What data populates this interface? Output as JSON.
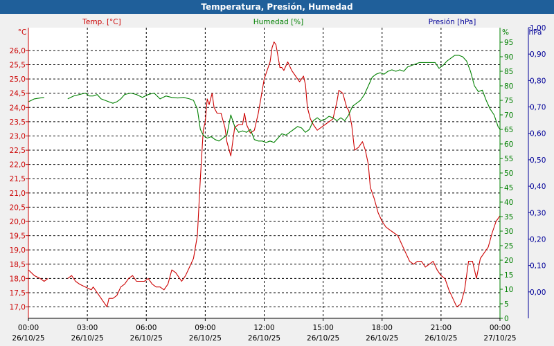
{
  "window": {
    "title": "Temperatura, Presión, Humedad"
  },
  "colors": {
    "temp": "#cc0000",
    "hum": "#008000",
    "press": "#000099",
    "grid": "#000000",
    "plot_bg": "#ffffff",
    "title_bg": "#1f5f9a"
  },
  "chart_data": {
    "type": "line",
    "title": "Temperatura, Presión, Humedad",
    "grid": true,
    "legend_labels": {
      "temp": "Temp. [°C]",
      "hum": "Humedad [%]",
      "press": "Presión [hPa]"
    },
    "axes": {
      "temp": {
        "unit": "°C",
        "min": 16.6,
        "max": 26.8,
        "ticks": [
          "17,0",
          "17,5",
          "18,0",
          "18,5",
          "19,0",
          "19,5",
          "20,0",
          "20,5",
          "21,0",
          "21,5",
          "22,0",
          "22,5",
          "23,0",
          "23,5",
          "24,0",
          "24,5",
          "25,0",
          "25,5",
          "26,0"
        ]
      },
      "hum": {
        "unit": "%",
        "min": 0,
        "max": 100,
        "ticks": [
          "0",
          "5",
          "10",
          "15",
          "20",
          "25",
          "30",
          "35",
          "40",
          "45",
          "50",
          "55",
          "60",
          "65",
          "70",
          "75",
          "80",
          "85",
          "90",
          "95"
        ]
      },
      "press": {
        "unit": "hPa",
        "min": -0.1,
        "max": 1.0,
        "ticks": [
          "0,00",
          "0,10",
          "0,20",
          "0,30",
          "0,40",
          "0,50",
          "0,60",
          "0,70",
          "0,80",
          "0,90",
          "1,00"
        ]
      }
    },
    "x_axis": {
      "min_hours": 0,
      "max_hours": 24,
      "ticks": [
        {
          "time": "00:00",
          "date": "26/10/25"
        },
        {
          "time": "03:00",
          "date": "26/10/25"
        },
        {
          "time": "06:00",
          "date": "26/10/25"
        },
        {
          "time": "09:00",
          "date": "26/10/25"
        },
        {
          "time": "12:00",
          "date": "26/10/25"
        },
        {
          "time": "15:00",
          "date": "26/10/25"
        },
        {
          "time": "18:00",
          "date": "26/10/25"
        },
        {
          "time": "21:00",
          "date": "26/10/25"
        },
        {
          "time": "00:00",
          "date": "27/10/25"
        }
      ]
    },
    "series": [
      {
        "name": "Temp. [°C]",
        "axis": "temp",
        "segments": [
          [
            [
              0,
              18.3
            ],
            [
              0.3,
              18.1
            ],
            [
              0.6,
              18.0
            ],
            [
              0.8,
              17.9
            ],
            [
              1.0,
              18.0
            ]
          ],
          [
            [
              2.0,
              18.0
            ],
            [
              2.2,
              18.1
            ],
            [
              2.4,
              17.9
            ],
            [
              2.6,
              17.8
            ],
            [
              2.9,
              17.7
            ],
            [
              3.2,
              17.6
            ],
            [
              3.3,
              17.7
            ],
            [
              3.5,
              17.5
            ],
            [
              3.7,
              17.3
            ],
            [
              3.9,
              17.1
            ],
            [
              4.0,
              17.0
            ],
            [
              4.1,
              17.3
            ],
            [
              4.3,
              17.3
            ],
            [
              4.5,
              17.4
            ],
            [
              4.7,
              17.7
            ],
            [
              4.9,
              17.8
            ],
            [
              5.1,
              18.0
            ],
            [
              5.3,
              18.1
            ],
            [
              5.5,
              17.9
            ],
            [
              5.7,
              17.9
            ],
            [
              5.9,
              17.9
            ],
            [
              6.1,
              18.0
            ],
            [
              6.3,
              17.8
            ],
            [
              6.5,
              17.7
            ],
            [
              6.7,
              17.7
            ],
            [
              6.9,
              17.6
            ],
            [
              7.1,
              17.8
            ],
            [
              7.3,
              18.3
            ],
            [
              7.5,
              18.2
            ],
            [
              7.8,
              17.9
            ],
            [
              8.0,
              18.1
            ],
            [
              8.2,
              18.4
            ],
            [
              8.4,
              18.7
            ],
            [
              8.6,
              19.5
            ],
            [
              8.75,
              21.5
            ],
            [
              8.9,
              23.2
            ],
            [
              9.0,
              23.5
            ],
            [
              9.1,
              24.3
            ],
            [
              9.2,
              24.1
            ],
            [
              9.35,
              24.5
            ],
            [
              9.45,
              24.0
            ],
            [
              9.6,
              23.8
            ],
            [
              9.8,
              23.8
            ],
            [
              10.0,
              23.3
            ],
            [
              10.1,
              22.8
            ],
            [
              10.3,
              22.3
            ],
            [
              10.5,
              23.3
            ],
            [
              10.7,
              23.4
            ],
            [
              10.9,
              23.4
            ],
            [
              11.0,
              23.8
            ],
            [
              11.1,
              23.4
            ],
            [
              11.3,
              23.1
            ],
            [
              11.5,
              23.2
            ],
            [
              11.7,
              23.8
            ],
            [
              11.9,
              24.6
            ],
            [
              12.0,
              25.0
            ],
            [
              12.1,
              25.2
            ],
            [
              12.2,
              25.4
            ],
            [
              12.3,
              25.6
            ],
            [
              12.4,
              26.1
            ],
            [
              12.5,
              26.3
            ],
            [
              12.6,
              26.2
            ],
            [
              12.7,
              25.8
            ],
            [
              12.8,
              25.4
            ],
            [
              12.9,
              25.4
            ],
            [
              13.0,
              25.3
            ],
            [
              13.2,
              25.6
            ],
            [
              13.4,
              25.3
            ],
            [
              13.6,
              25.1
            ],
            [
              13.8,
              24.9
            ],
            [
              14.0,
              25.1
            ],
            [
              14.1,
              24.8
            ],
            [
              14.2,
              24.0
            ],
            [
              14.35,
              23.6
            ],
            [
              14.5,
              23.4
            ],
            [
              14.7,
              23.2
            ],
            [
              14.9,
              23.3
            ],
            [
              15.1,
              23.4
            ],
            [
              15.3,
              23.5
            ],
            [
              15.5,
              23.6
            ],
            [
              15.7,
              24.2
            ],
            [
              15.8,
              24.6
            ],
            [
              16.0,
              24.5
            ],
            [
              16.2,
              24.0
            ],
            [
              16.3,
              23.9
            ],
            [
              16.45,
              23.4
            ],
            [
              16.6,
              22.5
            ],
            [
              16.8,
              22.6
            ],
            [
              17.0,
              22.8
            ],
            [
              17.15,
              22.5
            ],
            [
              17.3,
              22.0
            ],
            [
              17.4,
              21.2
            ],
            [
              17.6,
              20.8
            ],
            [
              17.8,
              20.3
            ],
            [
              18.0,
              20.0
            ],
            [
              18.2,
              19.8
            ],
            [
              18.4,
              19.7
            ],
            [
              18.6,
              19.6
            ],
            [
              18.8,
              19.5
            ],
            [
              19.0,
              19.2
            ],
            [
              19.2,
              18.9
            ],
            [
              19.4,
              18.6
            ],
            [
              19.6,
              18.5
            ],
            [
              19.8,
              18.6
            ],
            [
              20.0,
              18.6
            ],
            [
              20.2,
              18.4
            ],
            [
              20.4,
              18.5
            ],
            [
              20.6,
              18.6
            ],
            [
              20.8,
              18.3
            ],
            [
              21.0,
              18.1
            ],
            [
              21.2,
              18.0
            ],
            [
              21.4,
              17.6
            ],
            [
              21.6,
              17.3
            ],
            [
              21.8,
              17.0
            ],
            [
              22.0,
              17.1
            ],
            [
              22.2,
              17.6
            ],
            [
              22.4,
              18.6
            ],
            [
              22.5,
              18.6
            ],
            [
              22.6,
              18.6
            ],
            [
              22.8,
              18.0
            ],
            [
              23.0,
              18.7
            ],
            [
              23.2,
              18.9
            ],
            [
              23.4,
              19.1
            ],
            [
              23.6,
              19.6
            ],
            [
              23.8,
              20.0
            ],
            [
              24.0,
              20.2
            ]
          ]
        ]
      },
      {
        "name": "Humedad [%]",
        "axis": "hum",
        "segments": [
          [
            [
              0,
              74.5
            ],
            [
              0.3,
              75.5
            ],
            [
              0.6,
              75.8
            ],
            [
              0.8,
              76.0
            ]
          ],
          [
            [
              2.0,
              75.5
            ],
            [
              2.3,
              76.5
            ],
            [
              2.6,
              77.0
            ],
            [
              2.9,
              77.5
            ],
            [
              3.1,
              76.5
            ],
            [
              3.3,
              76.5
            ],
            [
              3.5,
              77.0
            ],
            [
              3.7,
              75.5
            ],
            [
              3.9,
              75.0
            ],
            [
              4.1,
              74.5
            ],
            [
              4.3,
              74.0
            ],
            [
              4.5,
              74.5
            ],
            [
              4.7,
              75.5
            ],
            [
              4.9,
              77.0
            ],
            [
              5.2,
              77.5
            ],
            [
              5.5,
              77.0
            ],
            [
              5.8,
              76.0
            ],
            [
              6.1,
              77.0
            ],
            [
              6.4,
              77.5
            ],
            [
              6.7,
              75.5
            ],
            [
              7.0,
              76.5
            ],
            [
              7.3,
              76.0
            ],
            [
              7.6,
              75.8
            ],
            [
              7.9,
              76.0
            ],
            [
              8.2,
              75.5
            ],
            [
              8.4,
              75.0
            ],
            [
              8.6,
              72.0
            ],
            [
              8.75,
              65.0
            ],
            [
              8.9,
              63.0
            ],
            [
              9.1,
              62.0
            ],
            [
              9.3,
              62.5
            ],
            [
              9.5,
              61.5
            ],
            [
              9.7,
              61.0
            ],
            [
              9.9,
              62.0
            ],
            [
              10.1,
              63.0
            ],
            [
              10.3,
              70.0
            ],
            [
              10.5,
              66.0
            ],
            [
              10.7,
              64.0
            ],
            [
              10.9,
              64.5
            ],
            [
              11.1,
              64.0
            ],
            [
              11.3,
              65.0
            ],
            [
              11.5,
              61.5
            ],
            [
              11.7,
              61.0
            ],
            [
              11.9,
              61.0
            ],
            [
              12.1,
              60.5
            ],
            [
              12.3,
              61.0
            ],
            [
              12.5,
              60.5
            ],
            [
              12.7,
              62.0
            ],
            [
              12.9,
              63.5
            ],
            [
              13.1,
              63.0
            ],
            [
              13.3,
              64.0
            ],
            [
              13.5,
              65.0
            ],
            [
              13.7,
              66.0
            ],
            [
              13.9,
              65.5
            ],
            [
              14.1,
              64.0
            ],
            [
              14.3,
              65.0
            ],
            [
              14.5,
              68.0
            ],
            [
              14.7,
              69.0
            ],
            [
              14.9,
              68.0
            ],
            [
              15.1,
              68.5
            ],
            [
              15.3,
              69.5
            ],
            [
              15.5,
              69.0
            ],
            [
              15.7,
              68.0
            ],
            [
              15.9,
              69.0
            ],
            [
              16.1,
              68.0
            ],
            [
              16.3,
              70.0
            ],
            [
              16.5,
              73.0
            ],
            [
              16.7,
              74.0
            ],
            [
              16.9,
              75.0
            ],
            [
              17.1,
              77.0
            ],
            [
              17.3,
              80.0
            ],
            [
              17.5,
              83.0
            ],
            [
              17.7,
              84.0
            ],
            [
              17.9,
              84.5
            ],
            [
              18.1,
              84.0
            ],
            [
              18.3,
              85.0
            ],
            [
              18.5,
              85.5
            ],
            [
              18.7,
              85.0
            ],
            [
              18.9,
              85.5
            ],
            [
              19.1,
              85.0
            ],
            [
              19.3,
              86.5
            ],
            [
              19.5,
              87.0
            ],
            [
              19.7,
              87.5
            ],
            [
              19.9,
              88.0
            ],
            [
              20.1,
              88.0
            ],
            [
              20.3,
              88.0
            ],
            [
              20.5,
              88.0
            ],
            [
              20.7,
              88.0
            ],
            [
              20.9,
              86.0
            ],
            [
              21.1,
              87.0
            ],
            [
              21.3,
              88.5
            ],
            [
              21.5,
              89.5
            ],
            [
              21.7,
              90.5
            ],
            [
              21.9,
              90.5
            ],
            [
              22.1,
              90.0
            ],
            [
              22.3,
              88.5
            ],
            [
              22.5,
              85.0
            ],
            [
              22.7,
              80.0
            ],
            [
              22.9,
              78.0
            ],
            [
              23.1,
              78.5
            ],
            [
              23.3,
              75.0
            ],
            [
              23.5,
              72.0
            ],
            [
              23.7,
              70.0
            ],
            [
              23.9,
              66.0
            ],
            [
              24.0,
              65.0
            ]
          ]
        ]
      }
    ]
  }
}
